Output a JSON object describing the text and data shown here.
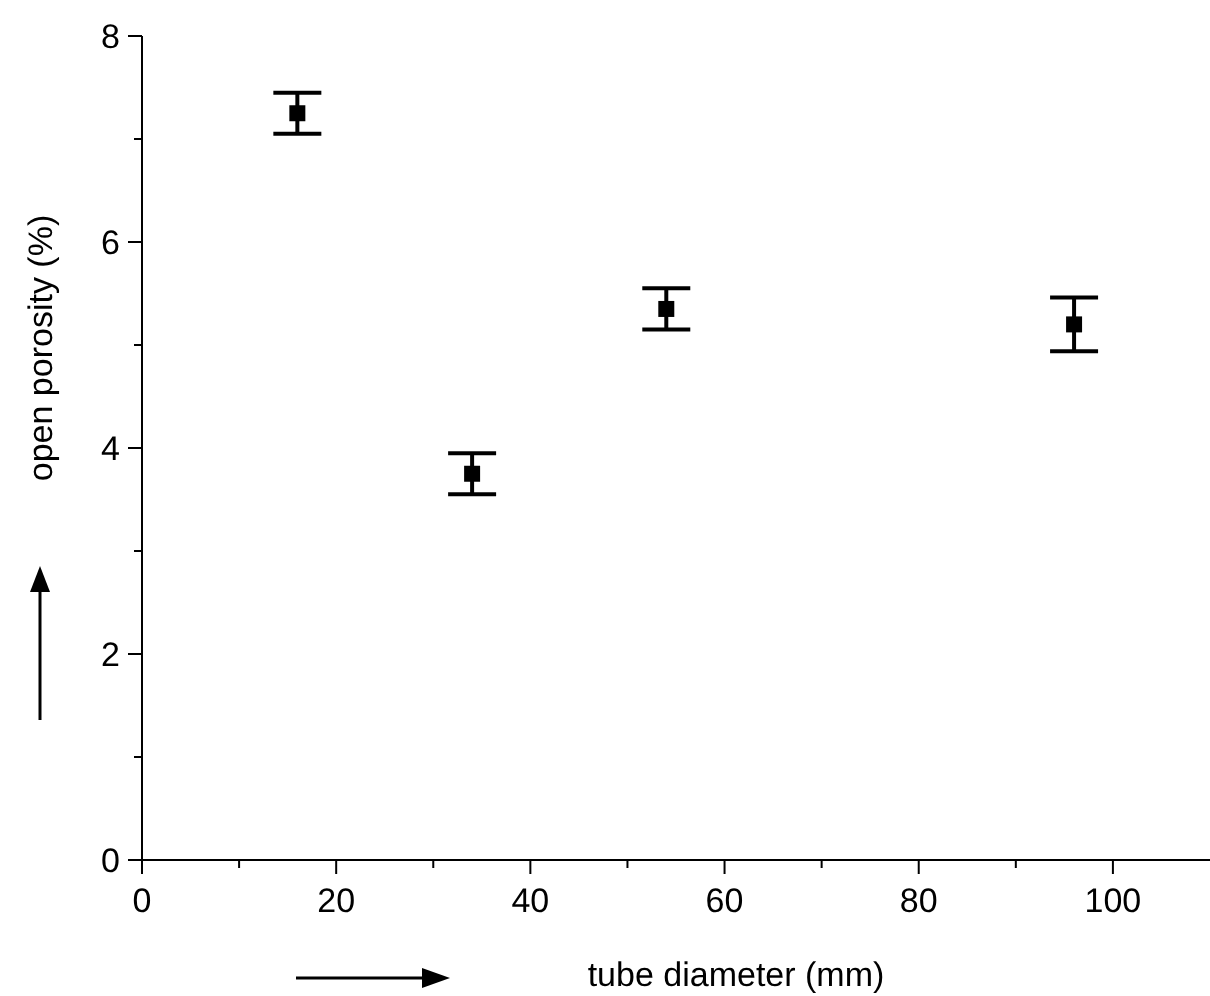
{
  "chart_data": {
    "type": "scatter",
    "xlabel": "tube diameter (mm)",
    "ylabel": "open porosity (%)",
    "x": [
      16,
      34,
      54,
      96
    ],
    "series": [
      {
        "color": "#000000",
        "values": [
          7.25,
          3.75,
          5.35,
          5.2
        ],
        "errors": [
          0.2,
          0.2,
          0.2,
          0.26
        ]
      }
    ],
    "marker": "square",
    "xlim": [
      0,
      110
    ],
    "xticks": [
      0,
      {
        "value": 10,
        "label": null
      },
      20,
      {
        "value": 30,
        "label": null
      },
      40,
      {
        "value": 50,
        "label": null
      },
      60,
      {
        "value": 70,
        "label": null
      },
      80,
      {
        "value": 90,
        "label": null
      },
      100
    ],
    "ylim": [
      0,
      8
    ],
    "yticks": [
      0,
      {
        "value": 1,
        "label": null
      },
      2,
      {
        "value": 3,
        "label": null
      },
      4,
      {
        "value": 5,
        "label": null
      },
      6,
      {
        "value": 7,
        "label": null
      },
      8
    ]
  }
}
